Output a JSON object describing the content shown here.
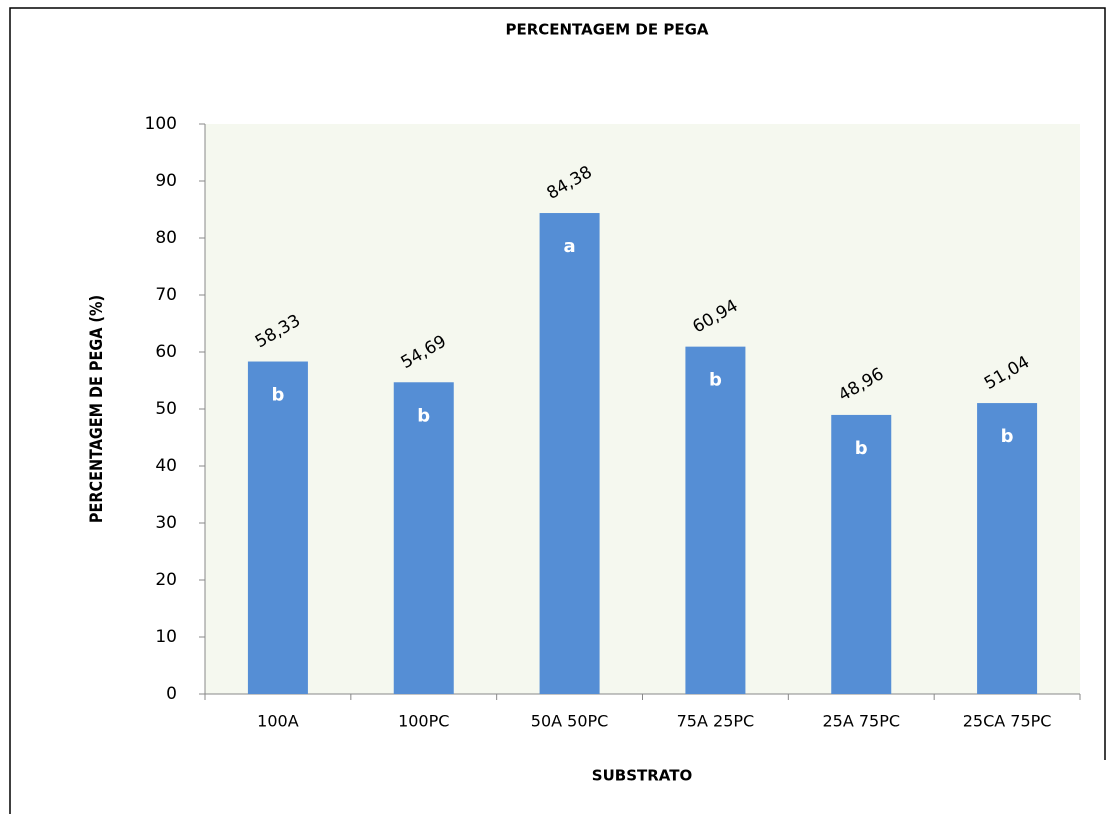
{
  "chart_data": {
    "type": "bar",
    "title": "PERCENTAGEM DE PEGA",
    "x_label": "SUBSTRATO",
    "y_label": "PERCENTAGEM DE PEGA (%)",
    "categories": [
      "100A",
      "100PC",
      "50A 50PC",
      "75A 25PC",
      "25A 75PC",
      "25CA 75PC"
    ],
    "values": [
      58.33,
      54.69,
      84.38,
      60.94,
      48.96,
      51.04
    ],
    "value_labels": [
      "58,33",
      "54,69",
      "84,38",
      "60,94",
      "48,96",
      "51,04"
    ],
    "letters": [
      "b",
      "b",
      "a",
      "b",
      "b",
      "b"
    ],
    "color": "#558ed5",
    "ylim": [
      0,
      100
    ],
    "yticks": [
      0,
      10,
      20,
      30,
      40,
      50,
      60,
      70,
      80,
      90,
      100
    ],
    "grid": false
  }
}
